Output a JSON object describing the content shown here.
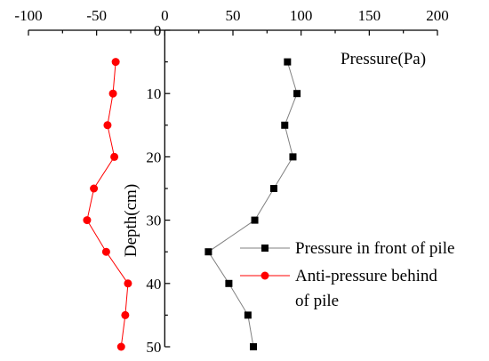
{
  "chart_data": {
    "type": "line",
    "xlabel": "Pressure(Pa)",
    "ylabel": "Depth(cm)",
    "xlim": [
      -100,
      200
    ],
    "ylim": [
      0,
      50
    ],
    "y_inverted": true,
    "x_axis_position": "top",
    "x_ticks": [
      "-100",
      "-50",
      "0",
      "50",
      "100",
      "150",
      "200"
    ],
    "y_ticks": [
      "0",
      "10",
      "20",
      "30",
      "40",
      "50"
    ],
    "legend_position": "bottom-right",
    "series": [
      {
        "name": "Pressure in front of pile",
        "marker": "square",
        "color": "#000000",
        "line_color": "#808080",
        "points": [
          {
            "x": 90,
            "y": 5
          },
          {
            "x": 97,
            "y": 10
          },
          {
            "x": 88,
            "y": 15
          },
          {
            "x": 94,
            "y": 20
          },
          {
            "x": 80,
            "y": 25
          },
          {
            "x": 66,
            "y": 30
          },
          {
            "x": 32,
            "y": 35
          },
          {
            "x": 47,
            "y": 40
          },
          {
            "x": 61,
            "y": 45
          },
          {
            "x": 65,
            "y": 50
          }
        ]
      },
      {
        "name": "Anti-pressure behind of pile",
        "marker": "circle",
        "color": "#ff0000",
        "line_color": "#ff0000",
        "points": [
          {
            "x": -36,
            "y": 5
          },
          {
            "x": -38,
            "y": 10
          },
          {
            "x": -42,
            "y": 15
          },
          {
            "x": -37,
            "y": 20
          },
          {
            "x": -52,
            "y": 25
          },
          {
            "x": -57,
            "y": 30
          },
          {
            "x": -43,
            "y": 35
          },
          {
            "x": -27,
            "y": 40
          },
          {
            "x": -29,
            "y": 45
          },
          {
            "x": -32,
            "y": 50
          }
        ]
      }
    ]
  }
}
